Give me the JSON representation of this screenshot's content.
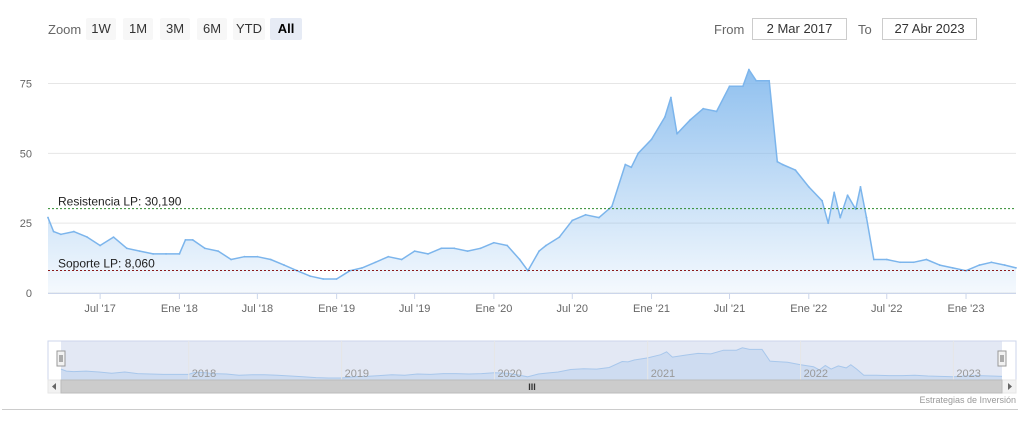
{
  "toolbar": {
    "zoom_label": "Zoom",
    "buttons": [
      "1W",
      "1M",
      "3M",
      "6M",
      "YTD",
      "All"
    ],
    "active_button": "All",
    "from_label": "From",
    "from_value": "2 Mar 2017",
    "to_label": "To",
    "to_value": "27 Abr 2023"
  },
  "colors": {
    "series_line": "#7cb5ec",
    "series_fill": "#7cb5ec",
    "resistance_line": "#2e8b2e",
    "support_line": "#8b1a1a",
    "navigator_mask": "#ccd6eb"
  },
  "chart_data": {
    "type": "area",
    "x_range": [
      "2017-03-02",
      "2023-04-27"
    ],
    "ylim": [
      0,
      87
    ],
    "y_ticks": [
      0,
      25,
      50,
      75
    ],
    "x_ticks": [
      "Jul '17",
      "Ene '18",
      "Jul '18",
      "Ene '19",
      "Jul '19",
      "Ene '20",
      "Jul '20",
      "Ene '21",
      "Jul '21",
      "Ene '22",
      "Jul '22",
      "Ene '23"
    ],
    "x_tick_dates": [
      "2017-07-01",
      "2018-01-01",
      "2018-07-01",
      "2019-01-01",
      "2019-07-01",
      "2020-01-01",
      "2020-07-01",
      "2021-01-01",
      "2021-07-01",
      "2022-01-01",
      "2022-07-01",
      "2023-01-01"
    ],
    "grid": true,
    "series": [
      {
        "x": [
          "2017-03-02",
          "2017-03-15",
          "2017-04-01",
          "2017-05-01",
          "2017-06-01",
          "2017-07-01",
          "2017-08-01",
          "2017-09-01",
          "2017-10-01",
          "2017-11-01",
          "2017-12-01",
          "2018-01-01",
          "2018-01-15",
          "2018-02-01",
          "2018-03-01",
          "2018-04-01",
          "2018-05-01",
          "2018-06-01",
          "2018-07-01",
          "2018-08-01",
          "2018-09-01",
          "2018-10-01",
          "2018-11-01",
          "2018-12-01",
          "2019-01-01",
          "2019-02-01",
          "2019-03-01",
          "2019-04-01",
          "2019-05-01",
          "2019-06-01",
          "2019-07-01",
          "2019-08-01",
          "2019-09-01",
          "2019-10-01",
          "2019-11-01",
          "2019-12-01",
          "2020-01-01",
          "2020-02-01",
          "2020-03-01",
          "2020-03-20",
          "2020-04-15",
          "2020-05-01",
          "2020-06-01",
          "2020-07-01",
          "2020-08-01",
          "2020-09-01",
          "2020-10-01",
          "2020-11-01",
          "2020-11-15",
          "2020-12-01",
          "2021-01-01",
          "2021-02-01",
          "2021-02-15",
          "2021-03-01",
          "2021-04-01",
          "2021-05-01",
          "2021-06-01",
          "2021-07-01",
          "2021-08-01",
          "2021-08-15",
          "2021-09-01",
          "2021-10-01",
          "2021-10-20",
          "2021-11-01",
          "2021-12-01",
          "2022-01-01",
          "2022-02-01",
          "2022-02-15",
          "2022-03-01",
          "2022-03-15",
          "2022-04-01",
          "2022-04-20",
          "2022-05-01",
          "2022-05-15",
          "2022-06-01",
          "2022-07-01",
          "2022-08-01",
          "2022-09-01",
          "2022-10-01",
          "2022-11-01",
          "2022-12-01",
          "2023-01-01",
          "2023-02-01",
          "2023-03-01",
          "2023-04-01",
          "2023-04-27"
        ],
        "y": [
          27,
          22,
          21,
          22,
          20,
          17,
          20,
          16,
          15,
          14,
          14,
          14,
          19,
          19,
          16,
          15,
          12,
          13,
          13,
          12,
          10,
          8,
          6,
          5,
          5,
          8,
          9,
          11,
          13,
          12,
          15,
          14,
          16,
          16,
          15,
          16,
          18,
          17,
          12,
          8,
          15,
          17,
          20,
          26,
          28,
          27,
          31,
          46,
          45,
          50,
          55,
          63,
          70,
          57,
          62,
          66,
          65,
          74,
          74,
          80,
          76,
          76,
          47,
          46,
          44,
          38,
          33,
          25,
          36,
          27,
          35,
          30,
          38,
          27,
          12,
          12,
          11,
          11,
          12,
          10,
          9,
          8,
          10,
          11,
          10,
          9
        ]
      }
    ],
    "annotations": [
      {
        "label": "Resistencia LP: 30,190",
        "value": 30.19
      },
      {
        "label": "Soporte LP: 8,060",
        "value": 8.06
      }
    ],
    "navigator": {
      "year_labels": [
        "2018",
        "2019",
        "2020",
        "2021",
        "2022",
        "2023"
      ],
      "year_dates": [
        "2018-01-01",
        "2019-01-01",
        "2020-01-01",
        "2021-01-01",
        "2022-01-01",
        "2023-01-01"
      ],
      "scrollbar_grip": "III"
    }
  },
  "credit": "Estrategias de Inversión"
}
